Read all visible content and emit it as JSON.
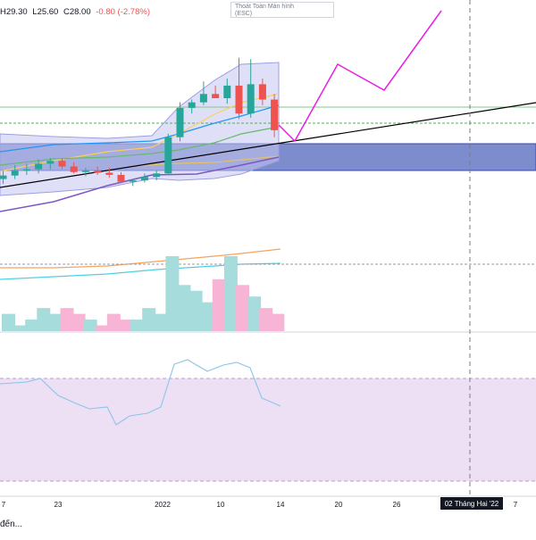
{
  "header": {
    "high": "H29.30",
    "low": "L25.60",
    "close": "C28.00",
    "change": "-0.80 (-2.78%)"
  },
  "tooltip": {
    "line1": "Thoát Toàn Màn hình",
    "line2": "(ESC)"
  },
  "bottom_text": "đến...",
  "crosshair_label": "02 Tháng Hai '22",
  "colors": {
    "up": "#26a69a",
    "down": "#ef5350",
    "volume_up": "#a6dcdc",
    "volume_down": "#f8b4d4",
    "magenta_projection": "#e91ee6",
    "trendline": "#000000",
    "zone_fill": "#4b5fb8",
    "bb_fill": "#c5c6f0",
    "rsi_band": "#ede0f4"
  },
  "chart_data": {
    "type": "candlestick",
    "x_ticks": [
      "7",
      "23",
      "2022",
      "10",
      "14",
      "20",
      "26",
      "7"
    ],
    "candles": [
      {
        "o": 3.0,
        "h": 4.2,
        "l": 2.3,
        "c": 3.5
      },
      {
        "o": 3.5,
        "h": 5.0,
        "l": 3.0,
        "c": 4.2
      },
      {
        "o": 4.2,
        "h": 5.2,
        "l": 3.6,
        "c": 4.4
      },
      {
        "o": 4.4,
        "h": 5.8,
        "l": 3.8,
        "c": 5.2
      },
      {
        "o": 5.2,
        "h": 6.0,
        "l": 4.4,
        "c": 5.6
      },
      {
        "o": 5.6,
        "h": 6.0,
        "l": 4.4,
        "c": 4.8
      },
      {
        "o": 4.8,
        "h": 5.4,
        "l": 3.8,
        "c": 4.0
      },
      {
        "o": 4.0,
        "h": 4.6,
        "l": 3.4,
        "c": 4.2
      },
      {
        "o": 4.2,
        "h": 4.8,
        "l": 3.6,
        "c": 3.9
      },
      {
        "o": 3.9,
        "h": 4.6,
        "l": 3.2,
        "c": 3.6
      },
      {
        "o": 3.6,
        "h": 4.0,
        "l": 2.4,
        "c": 2.6
      },
      {
        "o": 2.6,
        "h": 3.0,
        "l": 2.0,
        "c": 2.8
      },
      {
        "o": 2.8,
        "h": 3.8,
        "l": 2.5,
        "c": 3.3
      },
      {
        "o": 3.3,
        "h": 4.2,
        "l": 2.8,
        "c": 3.8
      },
      {
        "o": 3.8,
        "h": 9.5,
        "l": 3.6,
        "c": 9.0
      },
      {
        "o": 9.0,
        "h": 14.0,
        "l": 8.4,
        "c": 13.2
      },
      {
        "o": 13.2,
        "h": 14.4,
        "l": 12.4,
        "c": 14.0
      },
      {
        "o": 14.0,
        "h": 17.0,
        "l": 13.6,
        "c": 15.2
      },
      {
        "o": 15.2,
        "h": 16.4,
        "l": 14.6,
        "c": 14.6
      },
      {
        "o": 14.6,
        "h": 17.4,
        "l": 13.8,
        "c": 16.4
      },
      {
        "o": 16.4,
        "h": 20.4,
        "l": 11.6,
        "c": 12.4
      },
      {
        "o": 12.4,
        "h": 20.2,
        "l": 11.8,
        "c": 16.6
      },
      {
        "o": 16.6,
        "h": 17.4,
        "l": 13.6,
        "c": 14.4
      },
      {
        "o": 14.4,
        "h": 15.2,
        "l": 9.0,
        "c": 10.0
      }
    ],
    "volume": [
      3,
      1,
      2,
      4,
      3,
      4,
      3,
      2,
      1,
      3,
      2,
      2,
      4,
      3,
      13,
      8,
      7,
      5,
      9,
      13,
      8,
      6,
      4,
      3
    ]
  }
}
